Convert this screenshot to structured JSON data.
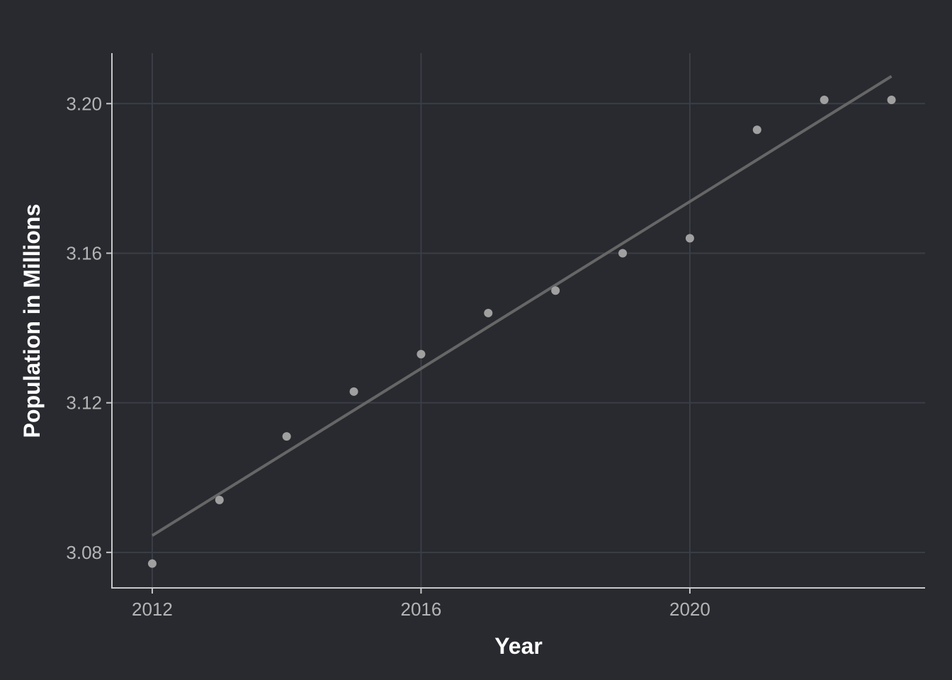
{
  "colors": {
    "background": "#282a2f",
    "grid": "#3b3e46",
    "axis": "#c8c8c8",
    "tick_text": "#b4b4b4",
    "title_text": "#ffffff",
    "points": "#a0a0a0",
    "trend_line": "#666666"
  },
  "chart_data": {
    "type": "scatter",
    "title": "",
    "xlabel": "Year",
    "ylabel": "Population in Millions",
    "xlim": [
      2011.4,
      2023.5
    ],
    "ylim": [
      3.0705,
      3.2135
    ],
    "grid": true,
    "x_ticks": [
      2012,
      2016,
      2020
    ],
    "x_tick_labels": [
      "2012",
      "2016",
      "2020"
    ],
    "y_ticks": [
      3.08,
      3.12,
      3.16,
      3.2
    ],
    "y_tick_labels": [
      "3.08",
      "3.12",
      "3.16",
      "3.20"
    ],
    "series": [
      {
        "x": [
          2012,
          2013,
          2014,
          2015,
          2016,
          2017,
          2018,
          2019,
          2020,
          2021,
          2022,
          2023
        ],
        "y": [
          3.077,
          3.094,
          3.111,
          3.123,
          3.133,
          3.144,
          3.15,
          3.16,
          3.164,
          3.193,
          3.201,
          3.201
        ]
      }
    ],
    "trend_line": {
      "x": [
        2012,
        2023
      ],
      "y": [
        3.0845,
        3.2073
      ]
    }
  }
}
